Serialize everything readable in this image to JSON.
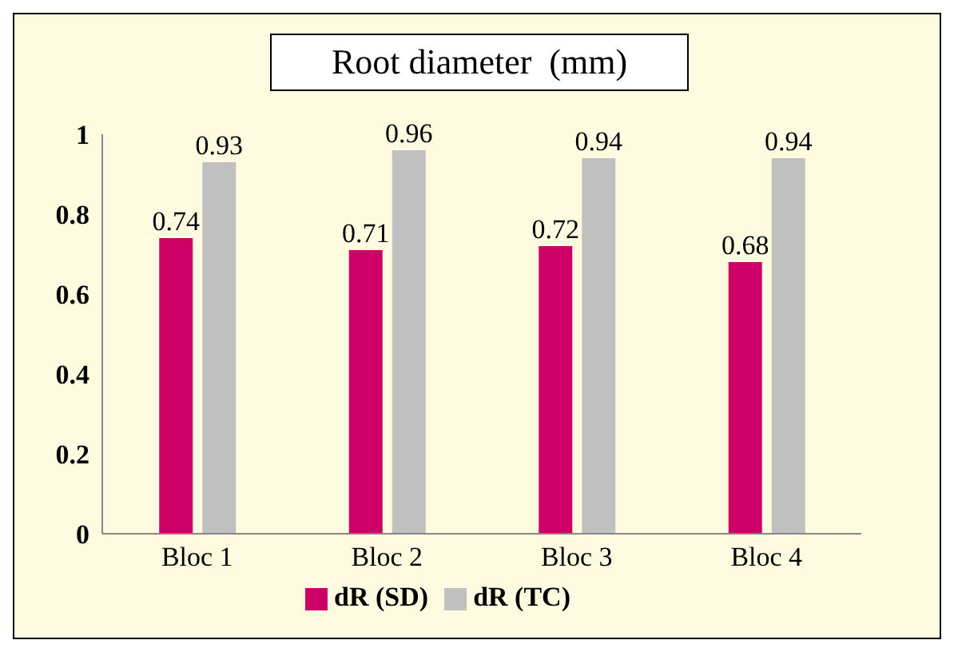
{
  "chart_data": {
    "type": "bar",
    "title": "Root diameter  (mm)",
    "categories": [
      "Bloc 1",
      "Bloc 2",
      "Bloc 3",
      "Bloc 4"
    ],
    "series": [
      {
        "name": "dR (SD)",
        "color": "#cc0066",
        "values": [
          0.74,
          0.71,
          0.72,
          0.68
        ]
      },
      {
        "name": "dR (TC)",
        "color": "#c0c0c0",
        "values": [
          0.93,
          0.96,
          0.94,
          0.94
        ]
      }
    ],
    "ylim": [
      0,
      1
    ],
    "yticks": [
      0,
      0.2,
      0.4,
      0.6,
      0.8,
      1
    ],
    "data_labels": true,
    "legend": "bottom",
    "grid": false
  }
}
